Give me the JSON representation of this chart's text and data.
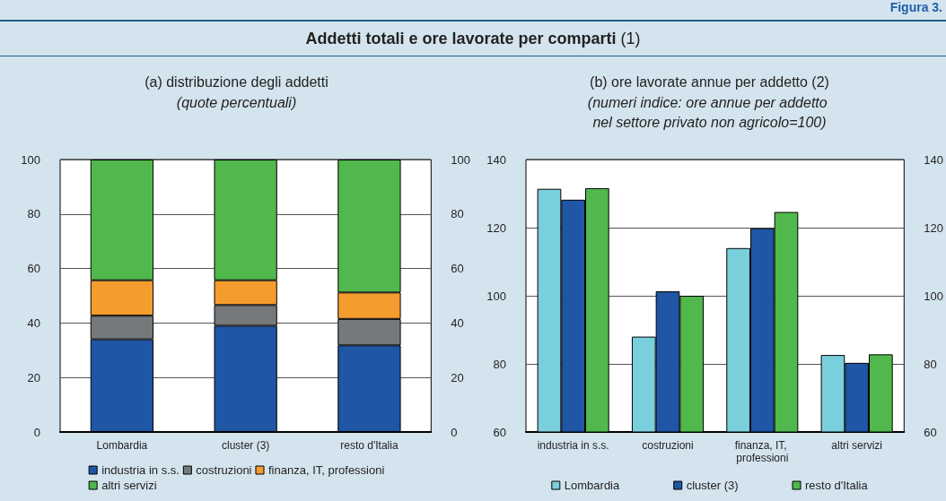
{
  "chart_data": [
    {
      "type": "bar",
      "title": "(a) distribuzione degli addetti",
      "subtitle": "(quote percentuali)",
      "annotations": [
        "Addetti totali e ore lavorate per comparti (1)",
        "Figura 3."
      ],
      "categories": [
        "Lombardia",
        "cluster (3)",
        "resto d'Italia"
      ],
      "stacked": true,
      "series": [
        {
          "name": "industria in s.s.",
          "color": "#1f56a5",
          "values": [
            34.0,
            39.0,
            31.8
          ]
        },
        {
          "name": "costruzioni",
          "color": "#76797b",
          "values": [
            8.7,
            7.6,
            9.7
          ]
        },
        {
          "name": "finanza, IT, professioni",
          "color": "#f59c2e",
          "values": [
            13.0,
            9.1,
            9.7
          ]
        },
        {
          "name": "altri servizi",
          "color": "#50b84c",
          "values": [
            44.3,
            44.3,
            48.8
          ]
        }
      ],
      "ylim": [
        0,
        100
      ],
      "yticks": [
        0,
        20,
        40,
        60,
        80,
        100
      ],
      "y2lim": [
        0,
        100
      ],
      "y2ticks": [
        0,
        20,
        40,
        60,
        80,
        100
      ],
      "grid": "y",
      "legend": "bottom"
    },
    {
      "type": "bar",
      "title": "(b) ore lavorate annue per addetto (2)",
      "subtitle": "(numeri indice: ore annue per addetto nel settore privato non agricolo=100)",
      "categories": [
        "industria in s.s.",
        "costruzioni",
        "finanza, IT, professioni",
        "altri servizi"
      ],
      "series": [
        {
          "name": "Lombardia",
          "color": "#7acfdd",
          "values": [
            131.4,
            88.0,
            114.0,
            82.6
          ]
        },
        {
          "name": "cluster (3)",
          "color": "#1f56a5",
          "values": [
            128.2,
            101.3,
            119.8,
            80.3
          ]
        },
        {
          "name": "resto d'Italia",
          "color": "#50b84c",
          "values": [
            131.6,
            100.0,
            124.6,
            82.8
          ]
        }
      ],
      "ylim": [
        60,
        140
      ],
      "yticks": [
        60,
        80,
        100,
        120,
        140
      ],
      "y2lim": [
        60,
        140
      ],
      "y2ticks": [
        60,
        80,
        100,
        120,
        140
      ],
      "grid": "y",
      "legend": "bottom"
    }
  ]
}
